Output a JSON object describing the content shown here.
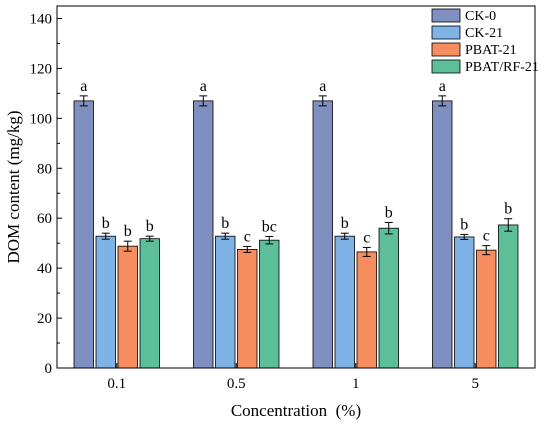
{
  "chart_data": {
    "type": "bar",
    "xlabel": "Concentration  (%)",
    "ylabel": "DOM content (mg/kg)",
    "ylim": [
      0,
      145
    ],
    "yticks": [
      0,
      20,
      40,
      60,
      80,
      100,
      120,
      140
    ],
    "categories": [
      "0.1",
      "0.5",
      "1",
      "5"
    ],
    "grid": false,
    "legend_position": "top-right",
    "series": [
      {
        "name": "CK-0",
        "color": "#7f8fbf",
        "values": [
          107,
          107,
          107,
          107
        ],
        "errors": [
          2.0,
          2.0,
          2.0,
          2.0
        ],
        "letters": [
          "a",
          "a",
          "a",
          "a"
        ]
      },
      {
        "name": "CK-21",
        "color": "#7fb2e5",
        "values": [
          52.8,
          52.8,
          52.8,
          52.5
        ],
        "errors": [
          1.2,
          1.2,
          1.2,
          1.0
        ],
        "letters": [
          "b",
          "b",
          "b",
          "b"
        ]
      },
      {
        "name": "PBAT-21",
        "color": "#f58d5f",
        "values": [
          48.8,
          47.5,
          46.5,
          47.2
        ],
        "errors": [
          2.0,
          1.2,
          1.8,
          1.8
        ],
        "letters": [
          "b",
          "c",
          "c",
          "c"
        ]
      },
      {
        "name": "PBAT/RF-21",
        "color": "#5cbf9a",
        "values": [
          51.8,
          51.2,
          56.0,
          57.3
        ],
        "errors": [
          1.0,
          1.5,
          2.3,
          2.5
        ],
        "letters": [
          "b",
          "bc",
          "b",
          "b"
        ]
      }
    ]
  }
}
